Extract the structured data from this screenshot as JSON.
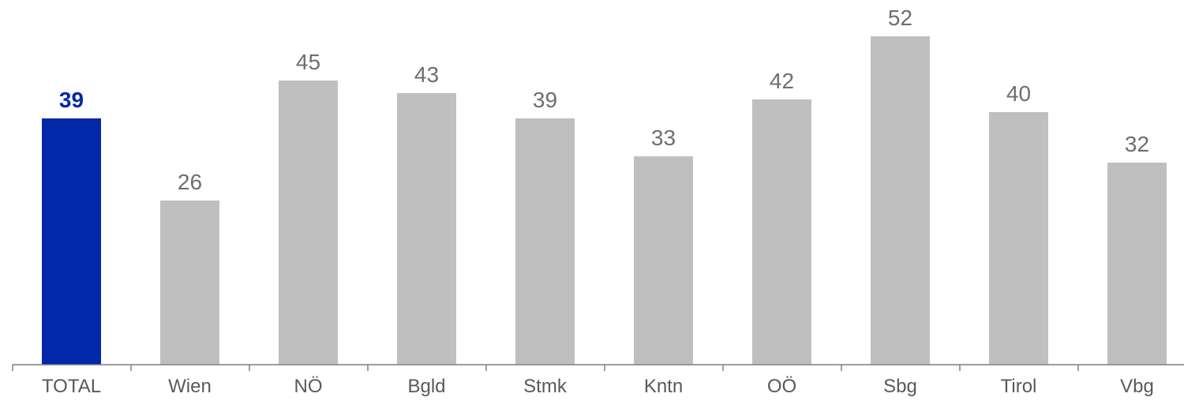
{
  "chart_data": {
    "type": "bar",
    "categories": [
      "TOTAL",
      "Wien",
      "NÖ",
      "Bgld",
      "Stmk",
      "Kntn",
      "OÖ",
      "Sbg",
      "Tirol",
      "Vbg"
    ],
    "values": [
      39,
      26,
      45,
      43,
      39,
      33,
      42,
      52,
      40,
      32
    ],
    "highlight_index": 0,
    "ylim": [
      0,
      52
    ],
    "grid": false,
    "legend": "none",
    "colors": {
      "highlight_bar": "#0028a8",
      "bar": "#bfbfbf",
      "highlight_label": "#0028a8",
      "label": "#6e6e6e",
      "axis": "#7f7f7f",
      "category_label": "#595959"
    }
  }
}
